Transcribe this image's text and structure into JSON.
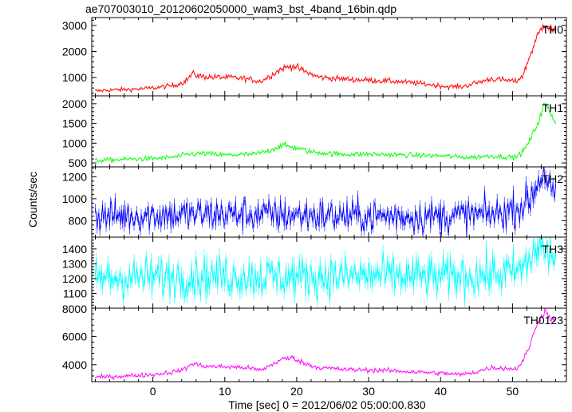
{
  "chart_data": {
    "type": "line",
    "title": "ae707003010_20120602050000_wam3_bst_4band_16bin.qdp",
    "xlabel": "Time [sec] 0 = 2012/06/02 05:00:00.830",
    "ylabel": "Counts/sec",
    "xlim": [
      -8.5,
      57.5
    ],
    "x_ticks": [
      0,
      10,
      20,
      30,
      40,
      50
    ],
    "x_step": 0.125,
    "grid": false,
    "panels": [
      {
        "name": "TH0",
        "color": "#ff0000",
        "ylim": [
          300,
          3300
        ],
        "y_ticks": [
          1000,
          2000,
          3000
        ],
        "base": 620,
        "noise": 45,
        "knots": [
          [
            -8,
            480
          ],
          [
            -6,
            520
          ],
          [
            -2,
            560
          ],
          [
            0,
            600
          ],
          [
            3,
            700
          ],
          [
            4.5,
            850
          ],
          [
            5.5,
            1150
          ],
          [
            6.5,
            1050
          ],
          [
            8,
            1020
          ],
          [
            11,
            1000
          ],
          [
            13,
            950
          ],
          [
            15,
            850
          ],
          [
            16.5,
            1100
          ],
          [
            18,
            1350
          ],
          [
            19.5,
            1450
          ],
          [
            21,
            1250
          ],
          [
            23,
            1020
          ],
          [
            26,
            950
          ],
          [
            30,
            900
          ],
          [
            34,
            850
          ],
          [
            38,
            750
          ],
          [
            41,
            650
          ],
          [
            43,
            650
          ],
          [
            45,
            800
          ],
          [
            47,
            950
          ],
          [
            49,
            900
          ],
          [
            50.5,
            850
          ],
          [
            51.5,
            1100
          ],
          [
            52.5,
            1900
          ],
          [
            53.5,
            2600
          ],
          [
            54.5,
            3100
          ],
          [
            55.5,
            2800
          ],
          [
            56,
            2850
          ]
        ]
      },
      {
        "name": "TH1",
        "color": "#00ff00",
        "ylim": [
          400,
          2200
        ],
        "y_ticks": [
          500,
          1000,
          1500,
          2000
        ],
        "base": 620,
        "noise": 30,
        "knots": [
          [
            -8,
            560
          ],
          [
            -4,
            590
          ],
          [
            0,
            610
          ],
          [
            3,
            650
          ],
          [
            5,
            720
          ],
          [
            7,
            740
          ],
          [
            10,
            700
          ],
          [
            14,
            720
          ],
          [
            16,
            800
          ],
          [
            18,
            950
          ],
          [
            20,
            880
          ],
          [
            22,
            780
          ],
          [
            26,
            720
          ],
          [
            30,
            720
          ],
          [
            35,
            700
          ],
          [
            40,
            680
          ],
          [
            44,
            640
          ],
          [
            47,
            680
          ],
          [
            49,
            650
          ],
          [
            50.5,
            650
          ],
          [
            51.5,
            800
          ],
          [
            52.5,
            1100
          ],
          [
            53.5,
            1500
          ],
          [
            54.5,
            2000
          ],
          [
            55.5,
            1700
          ],
          [
            56,
            1550
          ]
        ]
      },
      {
        "name": "TH2",
        "color": "#0000ff",
        "ylim": [
          650,
          1290
        ],
        "y_ticks": [
          800,
          1000,
          1200
        ],
        "base": 840,
        "noise": 75,
        "knots": [
          [
            -8,
            840
          ],
          [
            0,
            850
          ],
          [
            10,
            860
          ],
          [
            20,
            850
          ],
          [
            30,
            840
          ],
          [
            40,
            840
          ],
          [
            48,
            860
          ],
          [
            51,
            920
          ],
          [
            52.5,
            1000
          ],
          [
            53.5,
            1150
          ],
          [
            54.5,
            1250
          ],
          [
            55.5,
            1050
          ],
          [
            56,
            1000
          ]
        ]
      },
      {
        "name": "TH3",
        "color": "#00ffff",
        "ylim": [
          1000,
          1480
        ],
        "y_ticks": [
          1100,
          1200,
          1300,
          1400
        ],
        "base": 1220,
        "noise": 70,
        "knots": [
          [
            -8,
            1200
          ],
          [
            0,
            1210
          ],
          [
            10,
            1220
          ],
          [
            20,
            1210
          ],
          [
            30,
            1220
          ],
          [
            40,
            1210
          ],
          [
            48,
            1230
          ],
          [
            51,
            1250
          ],
          [
            52.5,
            1330
          ],
          [
            53.5,
            1420
          ],
          [
            54.5,
            1380
          ],
          [
            55.5,
            1360
          ],
          [
            56,
            1350
          ]
        ]
      },
      {
        "name": "TH0123",
        "color": "#ff00ff",
        "ylim": [
          2800,
          8000
        ],
        "y_ticks": [
          4000,
          6000,
          8000
        ],
        "base": 3400,
        "noise": 80,
        "knots": [
          [
            -8,
            3100
          ],
          [
            -4,
            3200
          ],
          [
            0,
            3300
          ],
          [
            3,
            3500
          ],
          [
            4.5,
            3700
          ],
          [
            5.5,
            4100
          ],
          [
            7,
            3900
          ],
          [
            10,
            3850
          ],
          [
            13,
            3800
          ],
          [
            15,
            3600
          ],
          [
            16.5,
            4000
          ],
          [
            18,
            4400
          ],
          [
            19.5,
            4500
          ],
          [
            21,
            4100
          ],
          [
            23,
            3800
          ],
          [
            27,
            3650
          ],
          [
            32,
            3600
          ],
          [
            36,
            3500
          ],
          [
            40,
            3400
          ],
          [
            43,
            3300
          ],
          [
            45,
            3500
          ],
          [
            47,
            3800
          ],
          [
            49,
            3750
          ],
          [
            50.5,
            3700
          ],
          [
            51.5,
            4300
          ],
          [
            52.5,
            5500
          ],
          [
            53.5,
            7000
          ],
          [
            54.5,
            7800
          ],
          [
            55.5,
            7200
          ],
          [
            56,
            7000
          ]
        ]
      }
    ]
  }
}
